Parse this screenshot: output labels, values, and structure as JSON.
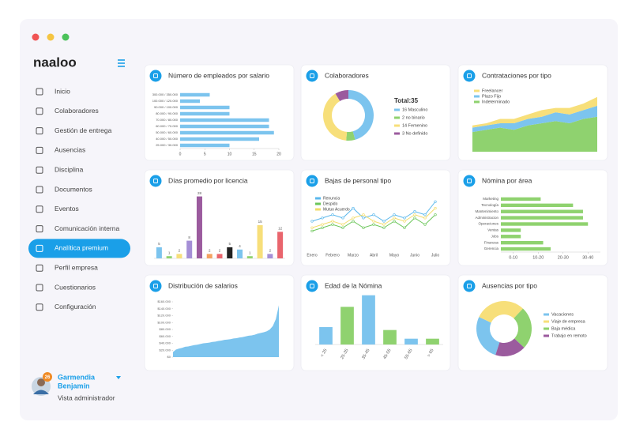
{
  "sidebar": {
    "logo": "naaloo",
    "menu": [
      "Inicio",
      "Colaboradores",
      "Gestión de entrega",
      "Ausencias",
      "Disciplina",
      "Documentos",
      "Eventos",
      "Comunicación interna",
      "Analítica premium",
      "Perfil empresa",
      "Cuestionarios",
      "Configuración"
    ],
    "active": 8,
    "user": {
      "name_line1": "Garmendia",
      "name_line2": "Benjamín",
      "badge": "26",
      "role": "Vista administrador"
    }
  },
  "cards": [
    {
      "title": "Número de empleados por salario",
      "chart": {
        "type": "hbar",
        "categories": [
          "300.000 / 350.000",
          "100.000 / 120.000",
          "90.000 / 100.000",
          "80.000 / 90.000",
          "70.000 / 80.000",
          "60.000 / 70.000",
          "50.000 / 60.000",
          "40.000 / 50.000",
          "25.000 / 30.000"
        ],
        "values": [
          6,
          4,
          10,
          10,
          18,
          18,
          19,
          16,
          10
        ],
        "color": "#7cc4ee",
        "xlim": [
          0,
          20
        ],
        "xticks": [
          0,
          5,
          10,
          15,
          20
        ]
      }
    },
    {
      "title": "Colaboradores",
      "chart": {
        "type": "donut",
        "total": "Total:35",
        "slices": [
          {
            "label": "16 Masculino",
            "value": 16,
            "color": "#7cc4ee"
          },
          {
            "label": "2 no binario",
            "value": 2,
            "color": "#8fd26f"
          },
          {
            "label": "14 Femenino",
            "value": 14,
            "color": "#f7df7a"
          },
          {
            "label": "3 No definido",
            "value": 3,
            "color": "#9b5b9e"
          }
        ]
      }
    },
    {
      "title": "Contrataciones por tipo",
      "chart": {
        "type": "stacked_area",
        "ylim": [
          0,
          26
        ],
        "series": [
          {
            "name": "Freelancer",
            "color": "#f7df7a",
            "values": [
              1,
              1,
              2,
              2,
              2,
              3,
              2,
              3,
              3,
              4
            ]
          },
          {
            "name": "Plazo Fijo",
            "color": "#7cc4ee",
            "values": [
              2,
              2,
              2,
              3,
              3,
              3,
              4,
              4,
              4,
              5
            ]
          },
          {
            "name": "Indeterminado",
            "color": "#8fd26f",
            "values": [
              9,
              10,
              11,
              10,
              12,
              13,
              14,
              13,
              15,
              16
            ]
          }
        ]
      }
    },
    {
      "title": "Días promedio por licencia",
      "chart": {
        "type": "bar",
        "data_labels": true,
        "ylim": [
          0,
          30
        ],
        "values": [
          5,
          1,
          2,
          8,
          28,
          2,
          2,
          5,
          4,
          1,
          15,
          2,
          12
        ],
        "colors": [
          "#7cc4ee",
          "#8fd26f",
          "#f7df7a",
          "#a58fd6",
          "#9b5b9e",
          "#f4a261",
          "#e9656d",
          "#222222",
          "#7cc4ee",
          "#8fd26f",
          "#f7df7a",
          "#a58fd6",
          "#e9656d"
        ]
      }
    },
    {
      "title": "Bajas de personal tipo",
      "chart": {
        "type": "line",
        "ylim": [
          0,
          16
        ],
        "categories": [
          "Enero",
          null,
          "Febrero",
          null,
          "Marzo",
          null,
          "Abril",
          null,
          "Mayo",
          null,
          "Junio",
          null,
          "Julio"
        ],
        "series": [
          {
            "name": "Renuncia",
            "color": "#5bb8ec",
            "values": [
              8,
              9,
              10,
              9,
              12,
              9,
              10,
              8,
              10,
              9,
              11,
              10,
              14
            ]
          },
          {
            "name": "Despido",
            "color": "#6cc65a",
            "values": [
              5,
              6,
              7,
              6,
              8,
              6,
              7,
              6,
              8,
              6,
              9,
              7,
              10
            ]
          },
          {
            "name": "Mutuo Acuerdo",
            "color": "#f2dc6b",
            "values": [
              6,
              7,
              8,
              7,
              9,
              10,
              8,
              7,
              9,
              8,
              10,
              9,
              12
            ]
          }
        ]
      }
    },
    {
      "title": "Nómina por área",
      "chart": {
        "type": "hbar",
        "categories": [
          "Marketing",
          "Tecnología",
          "Mantenimiento",
          "Administracion",
          "Operaciones",
          "Ventas",
          "Jobs",
          "Finanzas",
          "Gerencia"
        ],
        "values": [
          16,
          29,
          33,
          33,
          35,
          8,
          8,
          17,
          20
        ],
        "color": "#8fd26f",
        "xlim": [
          0,
          40
        ],
        "xticks": [
          {
            "value": 5,
            "label": "0-10"
          },
          {
            "value": 15,
            "label": "10-20"
          },
          {
            "value": 25,
            "label": "20-30"
          },
          {
            "value": 35,
            "label": "30-40"
          }
        ]
      }
    },
    {
      "title": "Distribución de salarios",
      "chart": {
        "type": "area",
        "color": "#7cc4ee",
        "ylim": [
          0,
          160000
        ],
        "yticks": [
          {
            "value": 0,
            "label": "$0"
          },
          {
            "value": 20000,
            "label": "$20.000"
          },
          {
            "value": 40000,
            "label": "$40.000"
          },
          {
            "value": 60000,
            "label": "$60.000"
          },
          {
            "value": 80000,
            "label": "$80.000"
          },
          {
            "value": 100000,
            "label": "$100.000"
          },
          {
            "value": 120000,
            "label": "$120.000"
          },
          {
            "value": 140000,
            "label": "$140.000"
          },
          {
            "value": 160000,
            "label": "$160.000"
          }
        ],
        "values": [
          15000,
          22000,
          25000,
          27000,
          30000,
          31000,
          33000,
          35000,
          36000,
          38000,
          40000,
          41000,
          42000,
          44000,
          45000,
          47000,
          48000,
          50000,
          51000,
          52000,
          54000,
          55000,
          57000,
          58000,
          60000,
          62000,
          63000,
          65000,
          68000,
          70000,
          72000,
          75000,
          80000,
          90000,
          110000,
          150000
        ]
      }
    },
    {
      "title": "Edad de la Nómina",
      "chart": {
        "type": "bar",
        "ylim": [
          0,
          18
        ],
        "categories": [
          "< 25",
          "25-35",
          "35-45",
          "45-55",
          "55-65",
          "> 65"
        ],
        "values": [
          6,
          13,
          17,
          5,
          2,
          2
        ],
        "colors": [
          "#7cc4ee",
          "#8fd26f",
          "#7cc4ee",
          "#8fd26f",
          "#7cc4ee",
          "#8fd26f"
        ]
      }
    },
    {
      "title": "Ausencias por tipo",
      "chart": {
        "type": "donut",
        "slices": [
          {
            "label": "Vacaciones",
            "value": 27,
            "color": "#7cc4ee"
          },
          {
            "label": "Viaje de empresa",
            "value": 30,
            "color": "#f7df7a"
          },
          {
            "label": "Baja médica",
            "value": 25,
            "color": "#8fd26f"
          },
          {
            "label": "Trabajo en remoto",
            "value": 18,
            "color": "#9b5b9e"
          }
        ]
      }
    }
  ]
}
